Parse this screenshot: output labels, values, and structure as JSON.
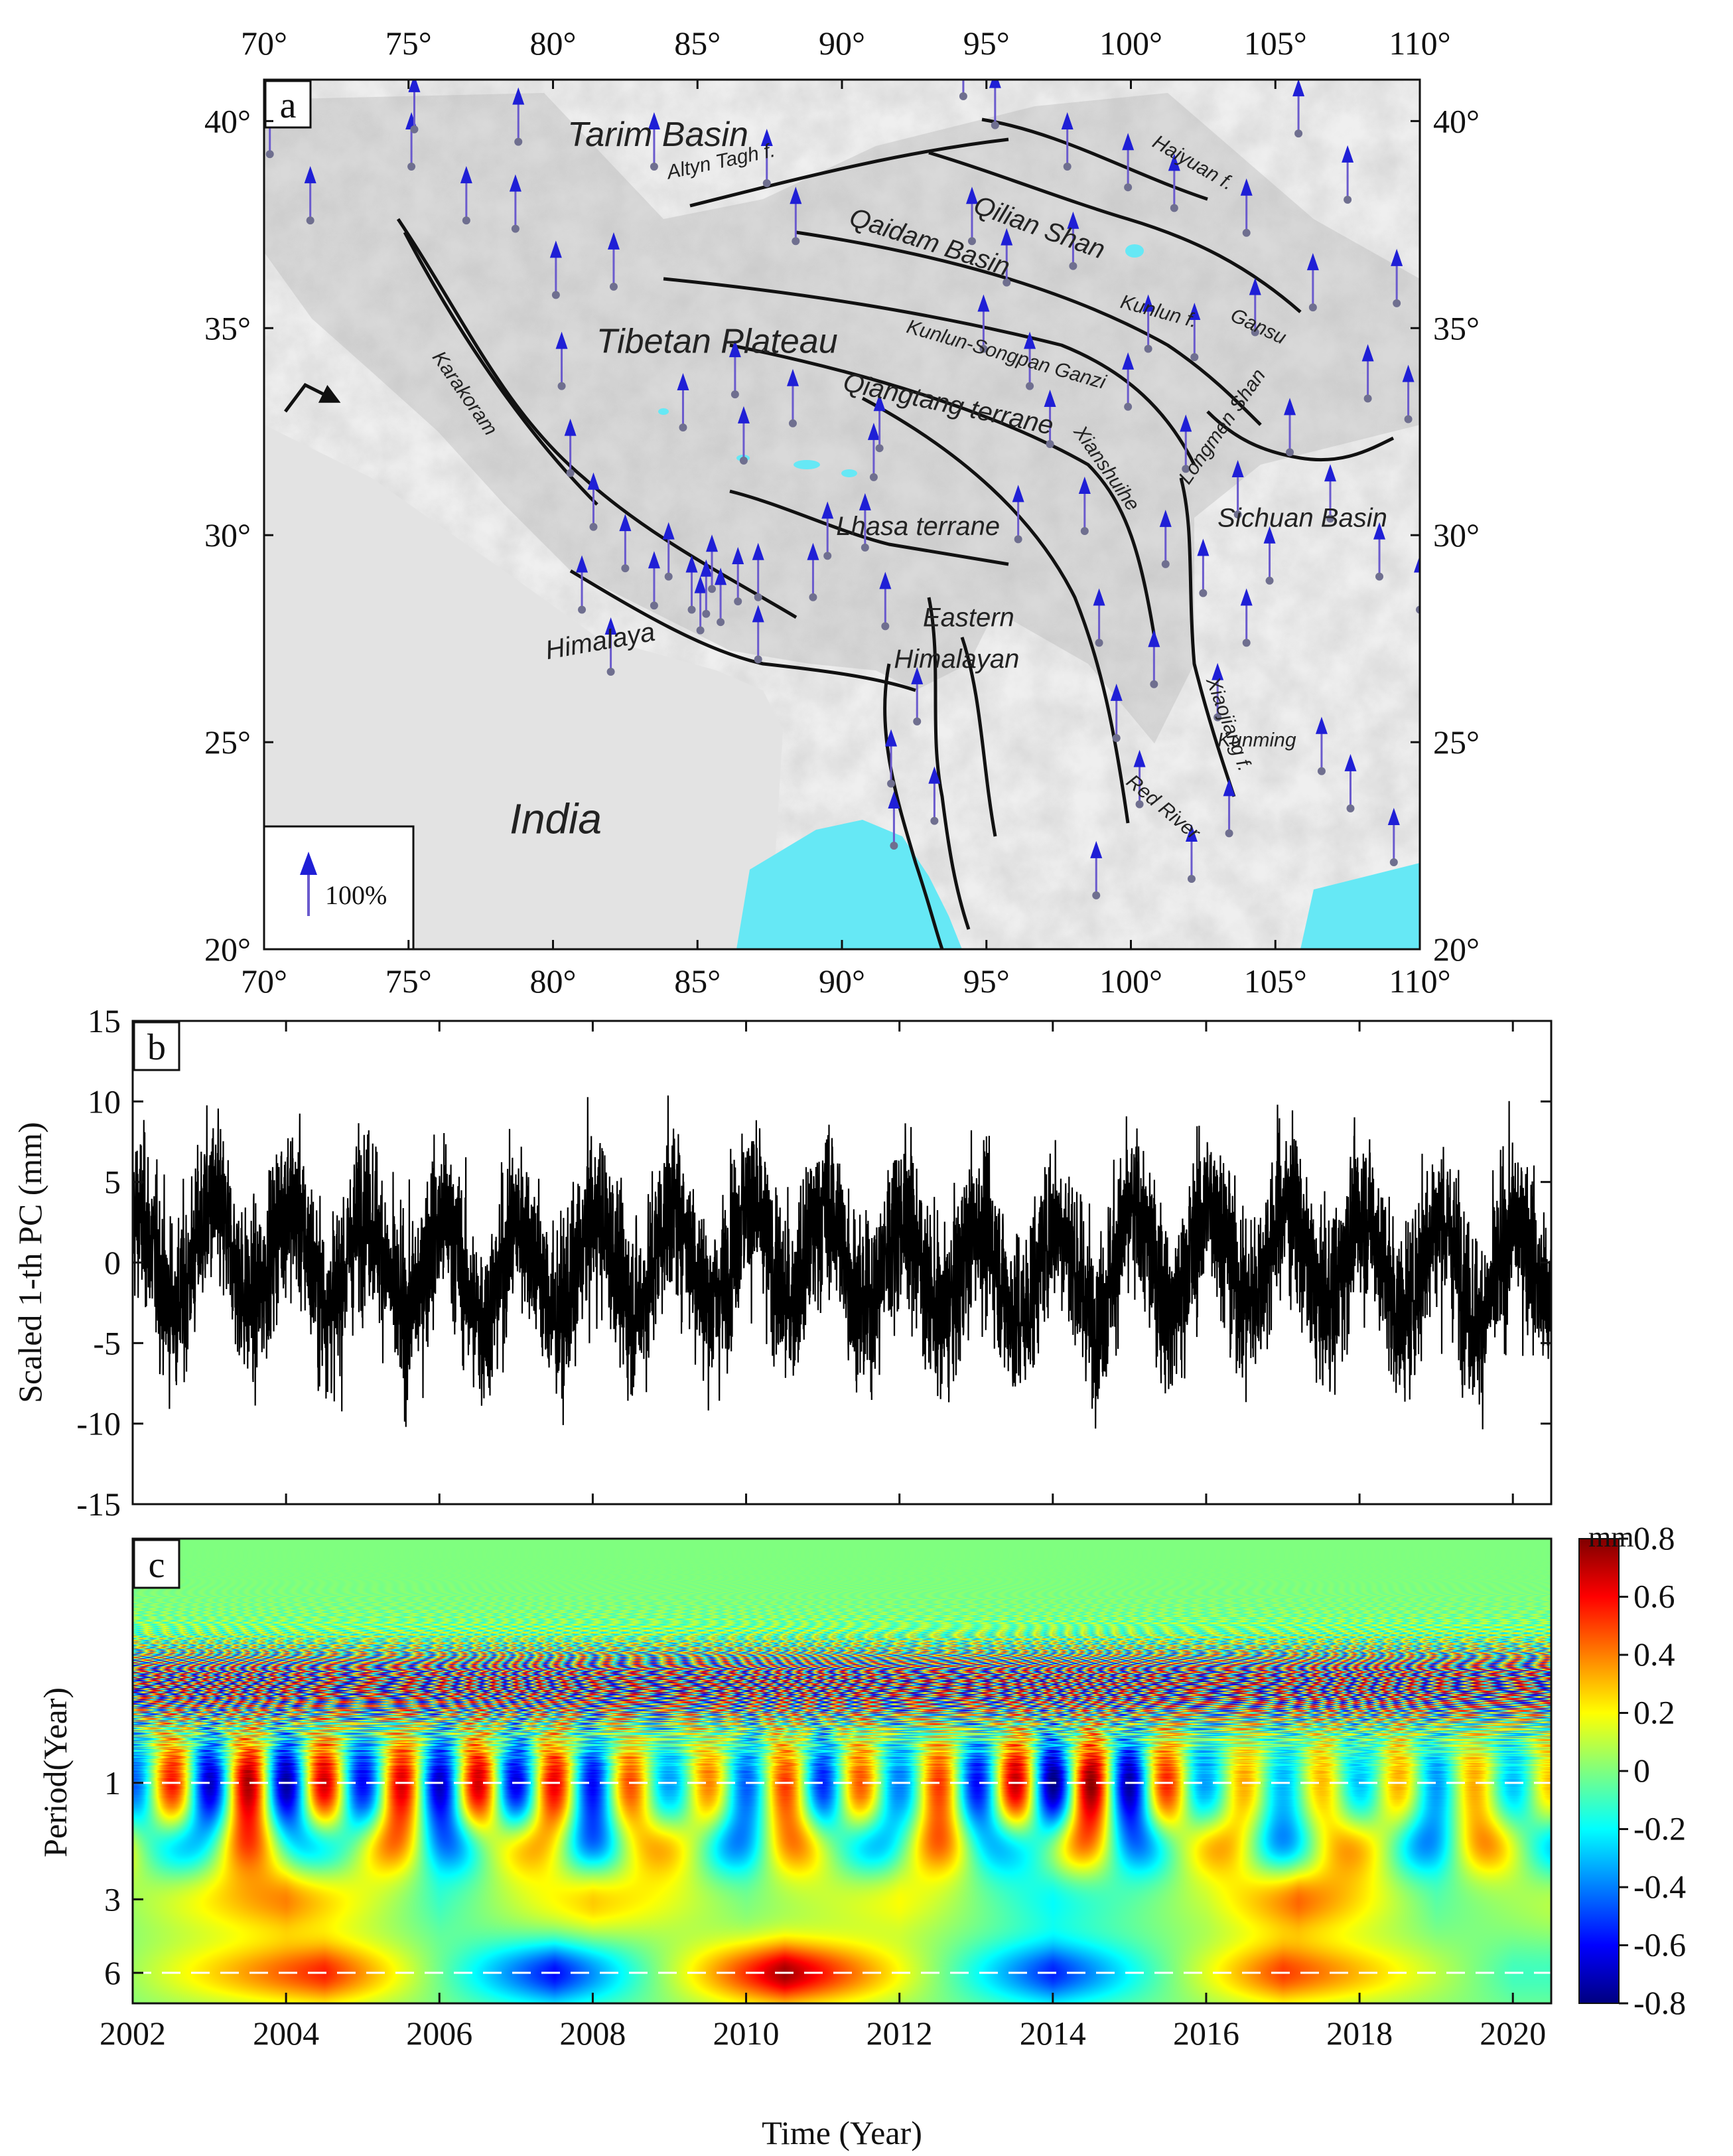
{
  "chart_data": [
    {
      "panel": "a",
      "type": "map",
      "lon_ticks": [
        "70°",
        "75°",
        "80°",
        "85°",
        "90°",
        "95°",
        "100°",
        "105°",
        "110°"
      ],
      "lat_ticks": [
        "20°",
        "25°",
        "30°",
        "35°",
        "40°"
      ],
      "lon_range": [
        70,
        110
      ],
      "lat_range": [
        20,
        41
      ],
      "region_labels": [
        {
          "text": "Tarim Basin",
          "lon": 80.5,
          "lat": 39.4,
          "style": "large"
        },
        {
          "text": "Tibetan Plateau",
          "lon": 81.5,
          "lat": 34.4,
          "style": "large"
        },
        {
          "text": "India",
          "lon": 78.5,
          "lat": 22.8,
          "style": "xlarge"
        },
        {
          "text": "Himalaya",
          "lon": 79.8,
          "lat": 27.0,
          "style": "medium",
          "rotate": -10
        },
        {
          "text": "Altyn Tagh f.",
          "lon": 84.0,
          "lat": 38.6,
          "style": "small",
          "rotate": -12
        },
        {
          "text": "Qilian Shan",
          "lon": 94.5,
          "lat": 37.8,
          "style": "medium",
          "rotate": 20
        },
        {
          "text": "Haiyuan f.",
          "lon": 100.7,
          "lat": 39.4,
          "style": "small",
          "rotate": 30
        },
        {
          "text": "Qaidam Basin",
          "lon": 90.2,
          "lat": 37.5,
          "style": "medium",
          "rotate": 18
        },
        {
          "text": "Kunlun f.",
          "lon": 99.6,
          "lat": 35.5,
          "style": "small",
          "rotate": 15
        },
        {
          "text": "Gansu",
          "lon": 103.4,
          "lat": 35.2,
          "style": "small",
          "rotate": 25
        },
        {
          "text": "Karakoram",
          "lon": 75.8,
          "lat": 34.3,
          "style": "small",
          "rotate": 55
        },
        {
          "text": "Kunlun-Songpan Ganzi",
          "lon": 92.2,
          "lat": 34.9,
          "style": "small",
          "rotate": 16
        },
        {
          "text": "Qiangtang terrane",
          "lon": 90.0,
          "lat": 33.5,
          "style": "medium",
          "rotate": 12
        },
        {
          "text": "Longmen Shan",
          "lon": 102.0,
          "lat": 31.2,
          "style": "small",
          "rotate": -55
        },
        {
          "text": "Xianshuihe",
          "lon": 98.0,
          "lat": 32.5,
          "style": "small",
          "rotate": 55
        },
        {
          "text": "Sichuan Basin",
          "lon": 103.0,
          "lat": 30.2,
          "style": "medium"
        },
        {
          "text": "Lhasa terrane",
          "lon": 89.8,
          "lat": 30.0,
          "style": "medium"
        },
        {
          "text": "Eastern",
          "lon": 92.8,
          "lat": 27.8,
          "style": "medium"
        },
        {
          "text": "Himalayan",
          "lon": 91.8,
          "lat": 26.8,
          "style": "medium"
        },
        {
          "text": "Red River",
          "lon": 99.8,
          "lat": 24.0,
          "style": "small",
          "rotate": 40
        },
        {
          "text": "Xiaojiang f.",
          "lon": 102.6,
          "lat": 26.5,
          "style": "small",
          "rotate": 70
        },
        {
          "text": "Kunming",
          "lon": 103.0,
          "lat": 24.9,
          "style": "small"
        }
      ],
      "stations_lonlat": [
        [
          70.2,
          39.2
        ],
        [
          71.6,
          37.6
        ],
        [
          75.1,
          38.9
        ],
        [
          75.2,
          39.8
        ],
        [
          77.0,
          37.6
        ],
        [
          78.7,
          37.4
        ],
        [
          78.8,
          39.5
        ],
        [
          80.1,
          35.8
        ],
        [
          80.3,
          33.6
        ],
        [
          80.6,
          31.5
        ],
        [
          81.0,
          28.2
        ],
        [
          81.4,
          30.2
        ],
        [
          82.1,
          36.0
        ],
        [
          82.5,
          29.2
        ],
        [
          82.0,
          26.7
        ],
        [
          83.5,
          38.9
        ],
        [
          83.5,
          28.3
        ],
        [
          84.0,
          29.0
        ],
        [
          84.5,
          32.6
        ],
        [
          84.8,
          28.2
        ],
        [
          85.1,
          27.7
        ],
        [
          85.3,
          28.1
        ],
        [
          85.5,
          28.7
        ],
        [
          85.8,
          27.9
        ],
        [
          86.4,
          28.4
        ],
        [
          86.6,
          31.8
        ],
        [
          87.1,
          27.0
        ],
        [
          87.1,
          28.5
        ],
        [
          87.4,
          38.5
        ],
        [
          88.3,
          32.7
        ],
        [
          89.0,
          28.5
        ],
        [
          89.5,
          29.5
        ],
        [
          90.8,
          29.7
        ],
        [
          91.1,
          31.4
        ],
        [
          91.3,
          32.1
        ],
        [
          91.5,
          27.8
        ],
        [
          91.7,
          24.0
        ],
        [
          91.8,
          22.5
        ],
        [
          92.6,
          25.5
        ],
        [
          93.2,
          23.1
        ],
        [
          94.2,
          40.6
        ],
        [
          94.5,
          37.1
        ],
        [
          95.3,
          39.9
        ],
        [
          95.7,
          36.1
        ],
        [
          96.5,
          33.6
        ],
        [
          97.2,
          32.2
        ],
        [
          97.8,
          38.9
        ],
        [
          98.0,
          36.5
        ],
        [
          98.4,
          30.1
        ],
        [
          98.9,
          27.4
        ],
        [
          99.5,
          25.1
        ],
        [
          99.9,
          33.1
        ],
        [
          99.9,
          38.4
        ],
        [
          100.3,
          23.5
        ],
        [
          100.6,
          34.5
        ],
        [
          101.2,
          29.3
        ],
        [
          101.5,
          37.9
        ],
        [
          101.9,
          31.6
        ],
        [
          102.2,
          34.3
        ],
        [
          102.5,
          28.6
        ],
        [
          103.0,
          25.6
        ],
        [
          103.4,
          22.8
        ],
        [
          103.7,
          30.5
        ],
        [
          104.0,
          37.3
        ],
        [
          104.3,
          34.9
        ],
        [
          104.8,
          28.9
        ],
        [
          105.5,
          32.0
        ],
        [
          105.8,
          39.7
        ],
        [
          106.3,
          35.5
        ],
        [
          106.6,
          24.3
        ],
        [
          106.9,
          30.4
        ],
        [
          107.5,
          38.1
        ],
        [
          108.2,
          33.3
        ],
        [
          108.6,
          29.0
        ],
        [
          109.2,
          35.6
        ],
        [
          109.6,
          32.8
        ],
        [
          110.0,
          28.2
        ],
        [
          88.4,
          37.1
        ],
        [
          86.3,
          33.4
        ],
        [
          94.9,
          34.5
        ],
        [
          96.1,
          29.9
        ],
        [
          98.8,
          21.3
        ],
        [
          100.8,
          26.4
        ],
        [
          102.1,
          21.7
        ],
        [
          104.0,
          27.4
        ],
        [
          107.6,
          23.4
        ],
        [
          109.1,
          22.1
        ]
      ],
      "scale_arrow_label": "100%"
    },
    {
      "panel": "b",
      "type": "line",
      "ylabel": "Scaled 1-th PC (mm)",
      "ylim": [
        -15,
        15
      ],
      "yticks": [
        "-15",
        "-10",
        "-5",
        "0",
        "5",
        "10",
        "15"
      ],
      "xlim": [
        2002,
        2020.5
      ],
      "x_start": 2002.0,
      "x_end": 2020.5,
      "n_points": 6750,
      "series": [
        {
          "annual_amplitude_mm": 3.0,
          "noise_sd_mm": 2.6,
          "peak_values": [
            10.6,
            11.4,
            10.3,
            9.4,
            10.6,
            11.1,
            10.9,
            9.4,
            9.0,
            9.6,
            9.0,
            9.2
          ],
          "trough_values": [
            -11.0,
            -10.8,
            -10.6,
            -11.1,
            -9.6,
            -10.5,
            -9.8,
            -10.4,
            -10.6,
            -10.2
          ]
        }
      ]
    },
    {
      "panel": "c",
      "type": "heatmap",
      "ylabel": "Period(Year)",
      "xlabel": "Time (Year)",
      "xlim": [
        2002,
        2020.5
      ],
      "xticks": [
        "2002",
        "2004",
        "2006",
        "2008",
        "2010",
        "2012",
        "2014",
        "2016",
        "2018",
        "2020"
      ],
      "yticks_period": [
        "1",
        "3",
        "6"
      ],
      "ylim_period": [
        0.1,
        8
      ],
      "reference_periods": [
        1,
        6
      ],
      "colorbar": {
        "unit": "mm",
        "range": [
          -0.8,
          0.8
        ],
        "ticks": [
          "0.8",
          "0.6",
          "0.4",
          "0.2",
          "0",
          "-0.2",
          "-0.4",
          "-0.6",
          "-0.8"
        ],
        "colors": [
          "#00007f",
          "#0000ff",
          "#007fff",
          "#00ffff",
          "#7fff7f",
          "#ffff00",
          "#ff7f00",
          "#ff0000",
          "#7f0000"
        ]
      },
      "annual_amplitude_by_year": [
        [
          2002,
          0.45
        ],
        [
          2003,
          0.7
        ],
        [
          2004,
          0.75
        ],
        [
          2005,
          0.6
        ],
        [
          2006,
          0.7
        ],
        [
          2007,
          0.65
        ],
        [
          2008,
          0.6
        ],
        [
          2009,
          0.35
        ],
        [
          2010,
          0.45
        ],
        [
          2011,
          0.55
        ],
        [
          2012,
          0.4
        ],
        [
          2013,
          0.6
        ],
        [
          2014,
          0.8
        ],
        [
          2015,
          0.75
        ],
        [
          2016,
          0.35
        ],
        [
          2017,
          0.3
        ],
        [
          2018,
          0.3
        ],
        [
          2019,
          0.35
        ],
        [
          2020,
          0.3
        ]
      ],
      "six_year_band": [
        [
          2002,
          0.05
        ],
        [
          2004.5,
          0.55
        ],
        [
          2007.5,
          -0.6
        ],
        [
          2010.5,
          0.75
        ],
        [
          2014,
          -0.55
        ],
        [
          2017,
          0.5
        ],
        [
          2020,
          -0.1
        ]
      ],
      "three_year_band": [
        [
          2002,
          0.05
        ],
        [
          2004,
          0.4
        ],
        [
          2006,
          -0.1
        ],
        [
          2008,
          0.3
        ],
        [
          2010,
          0.0
        ],
        [
          2012,
          0.2
        ],
        [
          2014,
          -0.2
        ],
        [
          2016,
          0.1
        ],
        [
          2017.2,
          0.45
        ],
        [
          2019,
          -0.05
        ],
        [
          2020.5,
          0.1
        ]
      ]
    }
  ],
  "panel_labels": {
    "a": "a",
    "b": "b",
    "c": "c"
  },
  "colors": {
    "arrow": "#1f1fd6",
    "water": "#66e8f5",
    "fault": "#111111",
    "relief": "#d7d7d7",
    "series_line": "#000000"
  }
}
